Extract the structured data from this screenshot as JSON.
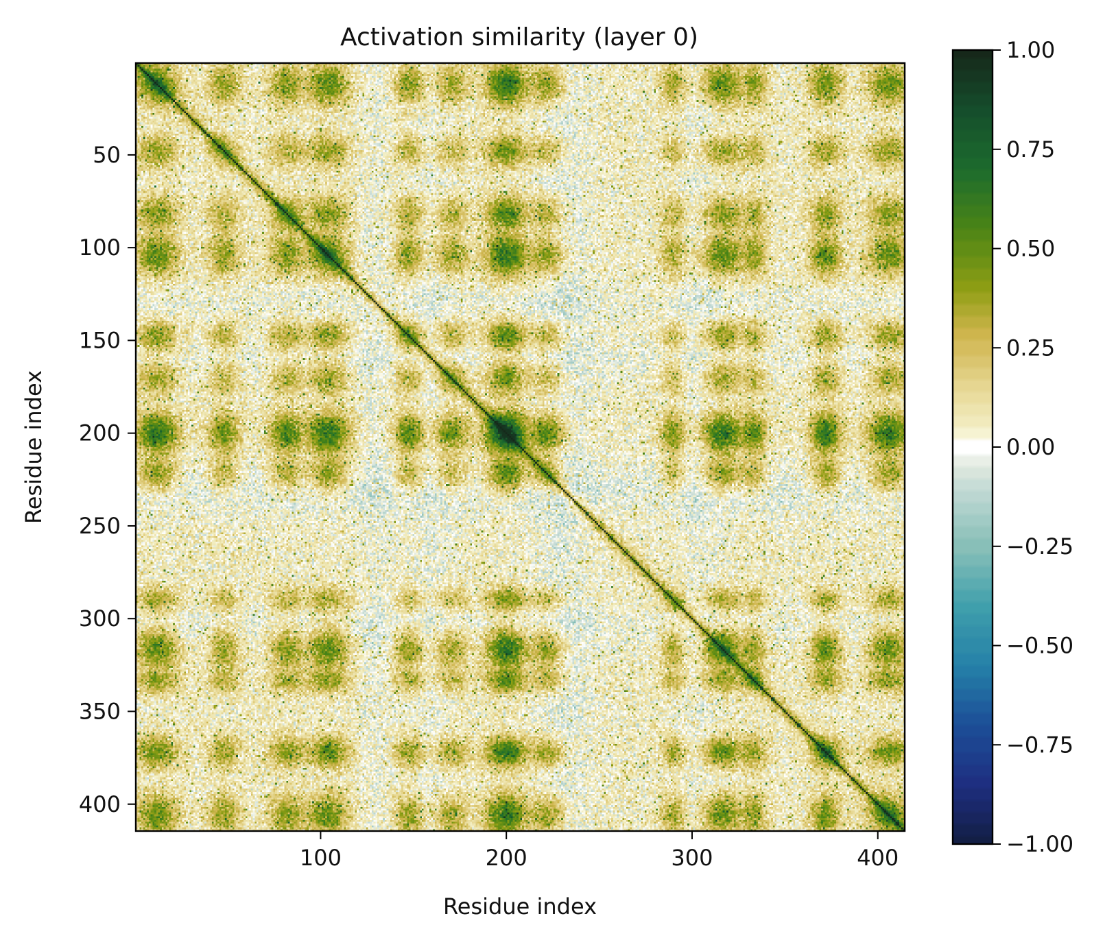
{
  "chart_data": {
    "type": "heatmap",
    "title": "Activation similarity (layer 0)",
    "xlabel": "Residue index",
    "ylabel": "Residue index",
    "n": 414,
    "xlim": [
      0.5,
      414.5
    ],
    "ylim": [
      414.5,
      0.5
    ],
    "x_ticks": [
      100,
      200,
      300,
      400
    ],
    "y_ticks": [
      50,
      100,
      150,
      200,
      250,
      300,
      350,
      400
    ],
    "value_range": [
      -1.0,
      1.0
    ],
    "diagonal_value": 1.0,
    "grid": false,
    "colorbar": {
      "placement": "right",
      "ticks": [
        1.0,
        0.75,
        0.5,
        0.25,
        0.0,
        -0.25,
        -0.5,
        -0.75,
        -1.0
      ],
      "tick_labels": [
        "1.00",
        "0.75",
        "0.50",
        "0.25",
        "0.00",
        "−0.25",
        "−0.50",
        "−0.75",
        "−1.00"
      ]
    },
    "colormap": [
      {
        "value": -1.0,
        "color": "#131f45"
      },
      {
        "value": -0.85,
        "color": "#1e2e80"
      },
      {
        "value": -0.7,
        "color": "#1c4f98"
      },
      {
        "value": -0.55,
        "color": "#2580a8"
      },
      {
        "value": -0.4,
        "color": "#40a0ac"
      },
      {
        "value": -0.25,
        "color": "#88bfb8"
      },
      {
        "value": -0.1,
        "color": "#c5dbd6"
      },
      {
        "value": -0.04,
        "color": "#e3ebe0"
      },
      {
        "value": 0.0,
        "color": "#ffffff"
      },
      {
        "value": 0.04,
        "color": "#f3efc6"
      },
      {
        "value": 0.15,
        "color": "#e7d894"
      },
      {
        "value": 0.28,
        "color": "#cfb54e"
      },
      {
        "value": 0.4,
        "color": "#8f9e14"
      },
      {
        "value": 0.55,
        "color": "#4a8416"
      },
      {
        "value": 0.7,
        "color": "#1d6c2d"
      },
      {
        "value": 0.85,
        "color": "#154d2c"
      },
      {
        "value": 1.0,
        "color": "#16281a"
      }
    ],
    "blocks": [
      {
        "center": 12,
        "width": 8,
        "strength": 0.32
      },
      {
        "center": 48,
        "width": 6,
        "strength": 0.18
      },
      {
        "center": 82,
        "width": 7,
        "strength": 0.22
      },
      {
        "center": 104,
        "width": 8,
        "strength": 0.33
      },
      {
        "center": 148,
        "width": 6,
        "strength": 0.22
      },
      {
        "center": 170,
        "width": 7,
        "strength": 0.18
      },
      {
        "center": 200,
        "width": 8,
        "strength": 0.55
      },
      {
        "center": 222,
        "width": 7,
        "strength": 0.25
      },
      {
        "center": 290,
        "width": 5,
        "strength": 0.15
      },
      {
        "center": 316,
        "width": 8,
        "strength": 0.35
      },
      {
        "center": 333,
        "width": 5,
        "strength": 0.2
      },
      {
        "center": 372,
        "width": 6,
        "strength": 0.3
      },
      {
        "center": 406,
        "width": 8,
        "strength": 0.3
      }
    ],
    "negative_bands": [
      {
        "center": 230,
        "width": 14,
        "strength": -0.15
      },
      {
        "center": 160,
        "width": 12,
        "strength": -0.1
      },
      {
        "center": 305,
        "width": 12,
        "strength": -0.1
      },
      {
        "center": 130,
        "width": 10,
        "strength": -0.08
      }
    ]
  }
}
